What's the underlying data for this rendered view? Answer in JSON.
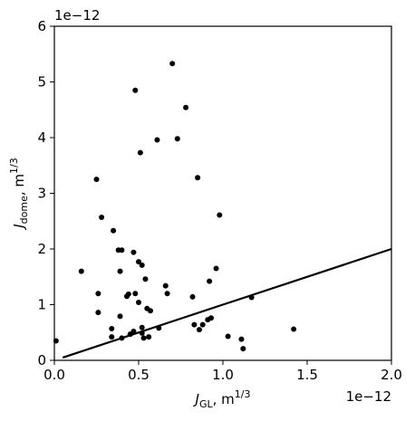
{
  "chart_data": {
    "type": "scatter",
    "xlabel": {
      "base": "J",
      "sub": "GL",
      "unit": ", m",
      "sup": "1/3"
    },
    "ylabel": {
      "base": "J",
      "sub": "dome",
      "unit": ", m",
      "sup": "1/3"
    },
    "x_offset_text": "1e−12",
    "y_offset_text": "1e−12",
    "xlim": [
      0.0,
      2.0
    ],
    "ylim": [
      0,
      6
    ],
    "x_ticks": [
      0.0,
      0.5,
      1.0,
      1.5,
      2.0
    ],
    "x_tick_labels": [
      "0.0",
      "0.5",
      "1.0",
      "1.5",
      "2.0"
    ],
    "y_ticks": [
      0,
      1,
      2,
      3,
      4,
      5,
      6
    ],
    "y_tick_labels": [
      "0",
      "1",
      "2",
      "3",
      "4",
      "5",
      "6"
    ],
    "grid": false,
    "marker_color": "#000000",
    "line_color": "#000000",
    "line": {
      "x": [
        0.05,
        2.0
      ],
      "y": [
        0.05,
        2.0
      ]
    },
    "points": [
      [
        0.01,
        0.35
      ],
      [
        0.16,
        1.6
      ],
      [
        0.25,
        3.25
      ],
      [
        0.26,
        1.2
      ],
      [
        0.26,
        0.86
      ],
      [
        0.28,
        2.57
      ],
      [
        0.34,
        0.42
      ],
      [
        0.34,
        0.57
      ],
      [
        0.35,
        2.33
      ],
      [
        0.38,
        1.98
      ],
      [
        0.39,
        1.6
      ],
      [
        0.4,
        1.98
      ],
      [
        0.39,
        0.79
      ],
      [
        0.4,
        0.4
      ],
      [
        0.43,
        1.15
      ],
      [
        0.44,
        1.19
      ],
      [
        0.45,
        0.47
      ],
      [
        0.47,
        1.94
      ],
      [
        0.47,
        0.52
      ],
      [
        0.48,
        4.85
      ],
      [
        0.48,
        1.2
      ],
      [
        0.5,
        1.77
      ],
      [
        0.5,
        1.04
      ],
      [
        0.51,
        3.73
      ],
      [
        0.52,
        1.71
      ],
      [
        0.52,
        0.59
      ],
      [
        0.52,
        0.49
      ],
      [
        0.53,
        0.4
      ],
      [
        0.54,
        1.46
      ],
      [
        0.55,
        0.93
      ],
      [
        0.56,
        0.42
      ],
      [
        0.57,
        0.89
      ],
      [
        0.61,
        3.96
      ],
      [
        0.62,
        0.58
      ],
      [
        0.66,
        1.34
      ],
      [
        0.67,
        1.2
      ],
      [
        0.7,
        5.33
      ],
      [
        0.73,
        3.98
      ],
      [
        0.78,
        4.54
      ],
      [
        0.82,
        1.14
      ],
      [
        0.83,
        0.64
      ],
      [
        0.85,
        3.28
      ],
      [
        0.86,
        0.55
      ],
      [
        0.88,
        0.64
      ],
      [
        0.91,
        0.73
      ],
      [
        0.92,
        1.42
      ],
      [
        0.93,
        0.76
      ],
      [
        0.96,
        1.65
      ],
      [
        0.98,
        2.61
      ],
      [
        1.03,
        0.43
      ],
      [
        1.11,
        0.38
      ],
      [
        1.12,
        0.21
      ],
      [
        1.17,
        1.13
      ],
      [
        1.42,
        0.56
      ]
    ]
  }
}
